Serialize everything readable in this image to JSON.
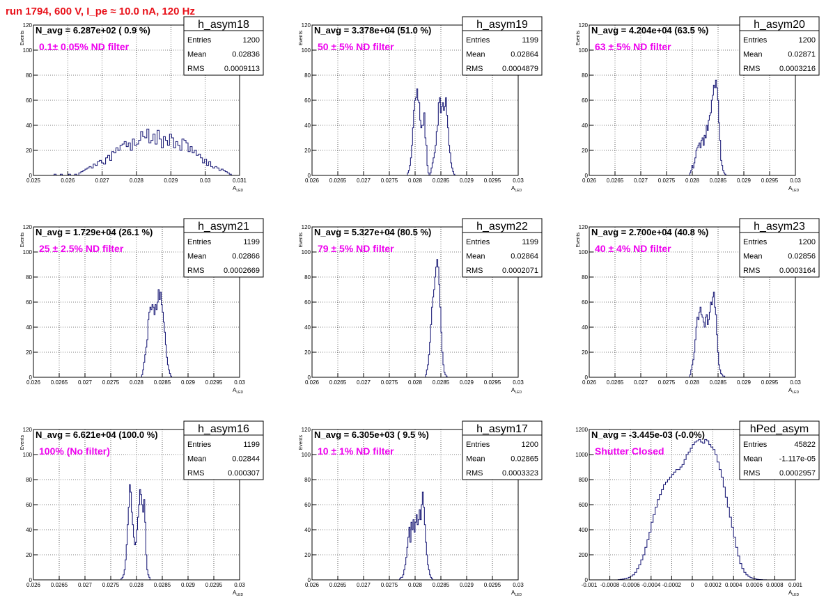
{
  "page_title": "run 1794,   600 V, I_pe ≈ 10.0 nA, 120 Hz",
  "colors": {
    "histogram": "#101070",
    "filter_label": "#ee00ee",
    "title": "#e8111a",
    "grid": "#000000"
  },
  "chart_data": [
    {
      "type": "bar",
      "name": "h_asym18",
      "annotation": "N_avg = 6.287e+02 ( 0.9 %)",
      "filter_label": "0.1± 0.05% ND filter",
      "stats": {
        "entries": "1200",
        "mean": "0.02836",
        "rms": "0.0009113"
      },
      "xlim": [
        0.025,
        0.031
      ],
      "ylim": [
        0,
        120
      ],
      "xticks": [
        "0.025",
        "0.026",
        "0.027",
        "0.028",
        "0.029",
        "0.03",
        "0.031"
      ],
      "yticks": [
        "0",
        "20",
        "40",
        "60",
        "80",
        "100",
        "120"
      ],
      "xlabel": "A",
      "xlabel_sub": "LED",
      "ylabel": "Events",
      "x_start": 0.0256,
      "bin_width": 6e-05,
      "values": [
        1,
        0,
        0,
        1,
        0,
        0,
        0,
        1,
        0,
        0,
        1,
        0,
        2,
        3,
        4,
        5,
        6,
        7,
        6,
        9,
        8,
        11,
        12,
        10,
        9,
        14,
        16,
        12,
        19,
        18,
        22,
        20,
        24,
        25,
        27,
        23,
        26,
        20,
        29,
        24,
        25,
        28,
        35,
        31,
        30,
        37,
        26,
        28,
        33,
        25,
        36,
        29,
        22,
        31,
        28,
        24,
        33,
        30,
        22,
        27,
        24,
        20,
        29,
        28,
        26,
        19,
        23,
        18,
        20,
        16,
        17,
        14,
        10,
        13,
        8,
        11,
        7,
        6,
        7,
        6,
        4,
        5,
        4,
        3,
        2,
        1
      ]
    },
    {
      "type": "bar",
      "name": "h_asym19",
      "annotation": "N_avg = 3.378e+04 (51.0 %)",
      "filter_label": "50 ± 5% ND filter",
      "stats": {
        "entries": "1199",
        "mean": "0.02864",
        "rms": "0.0004879"
      },
      "xlim": [
        0.026,
        0.03
      ],
      "ylim": [
        0,
        120
      ],
      "xticks": [
        "0.026",
        "0.0265",
        "0.027",
        "0.0275",
        "0.028",
        "0.0285",
        "0.029",
        "0.0295",
        "0.03"
      ],
      "yticks": [
        "0",
        "20",
        "40",
        "60",
        "80",
        "100",
        "120"
      ],
      "xlabel": "A",
      "xlabel_sub": "LED",
      "ylabel": "Events",
      "x_start": 0.02785,
      "bin_width": 2e-05,
      "values": [
        2,
        4,
        8,
        14,
        24,
        38,
        52,
        60,
        62,
        69,
        60,
        58,
        44,
        38,
        40,
        40,
        50,
        30,
        24,
        8,
        2,
        0,
        2,
        6,
        10,
        14,
        18,
        24,
        35,
        40,
        58,
        62,
        50,
        55,
        58,
        52,
        55,
        62,
        48,
        38,
        24,
        18,
        10,
        6,
        3,
        1
      ]
    },
    {
      "type": "bar",
      "name": "h_asym20",
      "annotation": "N_avg = 4.204e+04 (63.5 %)",
      "filter_label": "63 ± 5% ND filter",
      "stats": {
        "entries": "1200",
        "mean": "0.02871",
        "rms": "0.0003216"
      },
      "xlim": [
        0.026,
        0.03
      ],
      "ylim": [
        0,
        120
      ],
      "xticks": [
        "0.026",
        "0.0265",
        "0.027",
        "0.0275",
        "0.028",
        "0.0285",
        "0.029",
        "0.0295",
        "0.03"
      ],
      "yticks": [
        "0",
        "20",
        "40",
        "60",
        "80",
        "100",
        "120"
      ],
      "xlabel": "A",
      "xlabel_sub": "LED",
      "ylabel": "Events",
      "x_start": 0.02795,
      "bin_width": 2e-05,
      "values": [
        2,
        4,
        8,
        6,
        10,
        14,
        20,
        22,
        24,
        26,
        22,
        28,
        30,
        24,
        32,
        30,
        40,
        36,
        44,
        48,
        50,
        60,
        64,
        72,
        70,
        76,
        70,
        60,
        42,
        28,
        12,
        8,
        4,
        2,
        1
      ]
    },
    {
      "type": "bar",
      "name": "h_asym21",
      "annotation": "N_avg = 1.729e+04 (26.1 %)",
      "filter_label": "25 ± 2.5% ND filter",
      "stats": {
        "entries": "1199",
        "mean": "0.02866",
        "rms": "0.0002669"
      },
      "xlim": [
        0.026,
        0.03
      ],
      "ylim": [
        0,
        120
      ],
      "xticks": [
        "0.026",
        "0.0265",
        "0.027",
        "0.0275",
        "0.028",
        "0.0285",
        "0.029",
        "0.0295",
        "0.03"
      ],
      "yticks": [
        "0",
        "20",
        "40",
        "60",
        "80",
        "100",
        "120"
      ],
      "xlabel": "A",
      "xlabel_sub": "LED",
      "ylabel": "Events",
      "x_start": 0.0281,
      "bin_width": 2e-05,
      "values": [
        2,
        6,
        12,
        18,
        24,
        30,
        46,
        52,
        56,
        54,
        58,
        56,
        50,
        58,
        54,
        60,
        70,
        62,
        68,
        58,
        52,
        44,
        36,
        26,
        16,
        10,
        6,
        3,
        1
      ]
    },
    {
      "type": "bar",
      "name": "h_asym22",
      "annotation": "N_avg = 5.327e+04 (80.5 %)",
      "filter_label": "79 ± 5% ND filter",
      "stats": {
        "entries": "1199",
        "mean": "0.02864",
        "rms": "0.0002071"
      },
      "xlim": [
        0.026,
        0.03
      ],
      "ylim": [
        0,
        120
      ],
      "xticks": [
        "0.026",
        "0.0265",
        "0.027",
        "0.0275",
        "0.028",
        "0.0285",
        "0.029",
        "0.0295",
        "0.03"
      ],
      "yticks": [
        "0",
        "20",
        "40",
        "60",
        "80",
        "100",
        "120"
      ],
      "xlabel": "A",
      "xlabel_sub": "LED",
      "ylabel": "Events",
      "x_start": 0.0282,
      "bin_width": 2e-05,
      "values": [
        2,
        6,
        10,
        18,
        28,
        42,
        56,
        64,
        70,
        80,
        88,
        94,
        88,
        74,
        56,
        36,
        20,
        10,
        4,
        2,
        1
      ]
    },
    {
      "type": "bar",
      "name": "h_asym23",
      "annotation": "N_avg = 2.700e+04 (40.8 %)",
      "filter_label": "40 ± 4% ND filter",
      "stats": {
        "entries": "1200",
        "mean": "0.02856",
        "rms": "0.0003164"
      },
      "xlim": [
        0.026,
        0.03
      ],
      "ylim": [
        0,
        120
      ],
      "xticks": [
        "0.026",
        "0.0265",
        "0.027",
        "0.0275",
        "0.028",
        "0.0285",
        "0.029",
        "0.0295",
        "0.03"
      ],
      "yticks": [
        "0",
        "20",
        "40",
        "60",
        "80",
        "100",
        "120"
      ],
      "xlabel": "A",
      "xlabel_sub": "LED",
      "ylabel": "Events",
      "x_start": 0.02795,
      "bin_width": 2e-05,
      "values": [
        2,
        6,
        10,
        14,
        20,
        30,
        40,
        48,
        46,
        52,
        56,
        50,
        48,
        44,
        40,
        48,
        50,
        42,
        46,
        52,
        60,
        58,
        64,
        68,
        56,
        50,
        34,
        20,
        10,
        6,
        3,
        2,
        1,
        1
      ]
    },
    {
      "type": "bar",
      "name": "h_asym16",
      "annotation": "N_avg = 6.621e+04 (100.0 %)",
      "filter_label": "100% (No filter)",
      "stats": {
        "entries": "1199",
        "mean": "0.02844",
        "rms": "0.000307"
      },
      "xlim": [
        0.026,
        0.03
      ],
      "ylim": [
        0,
        120
      ],
      "xticks": [
        "0.026",
        "0.0265",
        "0.027",
        "0.0275",
        "0.028",
        "0.0285",
        "0.029",
        "0.0295",
        "0.03"
      ],
      "yticks": [
        "0",
        "20",
        "40",
        "60",
        "80",
        "100",
        "120"
      ],
      "xlabel": "A",
      "xlabel_sub": "LED",
      "ylabel": "Events",
      "x_start": 0.0277,
      "bin_width": 2e-05,
      "values": [
        1,
        2,
        4,
        8,
        16,
        28,
        44,
        58,
        76,
        70,
        54,
        44,
        34,
        28,
        30,
        40,
        50,
        60,
        72,
        68,
        60,
        54,
        64,
        46,
        20,
        8,
        4,
        2
      ]
    },
    {
      "type": "bar",
      "name": "h_asym17",
      "annotation": "N_avg = 6.305e+03 ( 9.5 %)",
      "filter_label": "10 ± 1% ND filter",
      "stats": {
        "entries": "1200",
        "mean": "0.02865",
        "rms": "0.0003323"
      },
      "xlim": [
        0.026,
        0.03
      ],
      "ylim": [
        0,
        120
      ],
      "xticks": [
        "0.026",
        "0.0265",
        "0.027",
        "0.0275",
        "0.028",
        "0.0285",
        "0.029",
        "0.0295",
        "0.03"
      ],
      "yticks": [
        "0",
        "20",
        "40",
        "60",
        "80",
        "100",
        "120"
      ],
      "xlabel": "A",
      "xlabel_sub": "LED",
      "ylabel": "Events",
      "x_start": 0.0277,
      "bin_width": 2e-05,
      "values": [
        1,
        2,
        2,
        4,
        8,
        12,
        18,
        26,
        34,
        42,
        30,
        46,
        40,
        48,
        38,
        46,
        52,
        44,
        48,
        56,
        48,
        60,
        70,
        58,
        44,
        30,
        20,
        12,
        8,
        4,
        2,
        1
      ]
    },
    {
      "type": "bar",
      "name": "hPed_asym",
      "annotation": "N_avg = -3.445e-03 (-0.0%)",
      "filter_label": "Shutter Closed",
      "stats": {
        "entries": "45822",
        "mean": "-1.117e-05",
        "rms": "0.0002957"
      },
      "xlim": [
        -0.001,
        0.001
      ],
      "ylim": [
        0,
        1200
      ],
      "xticks": [
        "-0.001",
        "-0.0008",
        "-0.0006",
        "-0.0004",
        "-0.0002",
        "0",
        "0.0002",
        "0.0004",
        "0.0006",
        "0.0008",
        "0.001"
      ],
      "yticks": [
        "0",
        "200",
        "400",
        "600",
        "800",
        "1000",
        "1200"
      ],
      "xlabel": "A",
      "xlabel_sub": "LED",
      "ylabel": "",
      "x_start": -0.001,
      "bin_width": 2e-05,
      "values": [
        0,
        0,
        0,
        0,
        0,
        0,
        0,
        0,
        0,
        0,
        0,
        0,
        0,
        0,
        2,
        4,
        6,
        10,
        14,
        20,
        30,
        40,
        60,
        90,
        120,
        160,
        200,
        260,
        320,
        380,
        460,
        520,
        580,
        640,
        680,
        720,
        760,
        780,
        800,
        820,
        840,
        860,
        880,
        880,
        900,
        920,
        960,
        1000,
        1020,
        1050,
        1080,
        1100,
        1110,
        1120,
        1100,
        1090,
        1120,
        1110,
        1080,
        1060,
        1040,
        1000,
        940,
        880,
        820,
        740,
        660,
        580,
        500,
        420,
        340,
        260,
        190,
        130,
        90,
        60,
        40,
        28,
        18,
        12,
        8,
        5,
        3,
        2,
        1,
        1,
        0,
        0,
        0,
        0,
        0,
        0,
        0,
        0,
        0,
        0,
        0,
        0,
        0,
        0
      ]
    }
  ]
}
